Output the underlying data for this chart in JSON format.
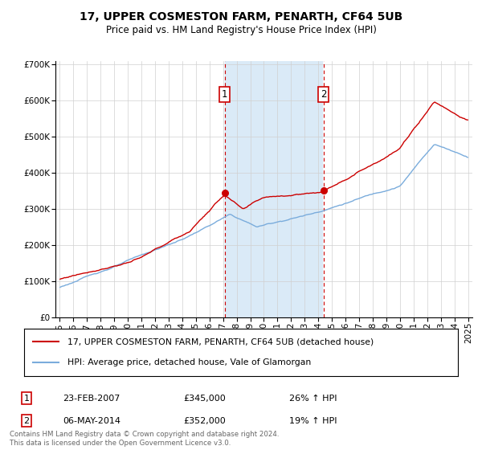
{
  "title": "17, UPPER COSMESTON FARM, PENARTH, CF64 5UB",
  "subtitle": "Price paid vs. HM Land Registry's House Price Index (HPI)",
  "legend_line1": "17, UPPER COSMESTON FARM, PENARTH, CF64 5UB (detached house)",
  "legend_line2": "HPI: Average price, detached house, Vale of Glamorgan",
  "purchase1_date": "23-FEB-2007",
  "purchase1_price": 345000,
  "purchase1_label": "26% ↑ HPI",
  "purchase2_date": "06-MAY-2014",
  "purchase2_price": 352000,
  "purchase2_label": "19% ↑ HPI",
  "footnote": "Contains HM Land Registry data © Crown copyright and database right 2024.\nThis data is licensed under the Open Government Licence v3.0.",
  "red_color": "#cc0000",
  "blue_color": "#7aacdc",
  "shade_color": "#daeaf7",
  "ylim_max": 700000,
  "p1_time": 2007.12,
  "p2_time": 2014.37
}
